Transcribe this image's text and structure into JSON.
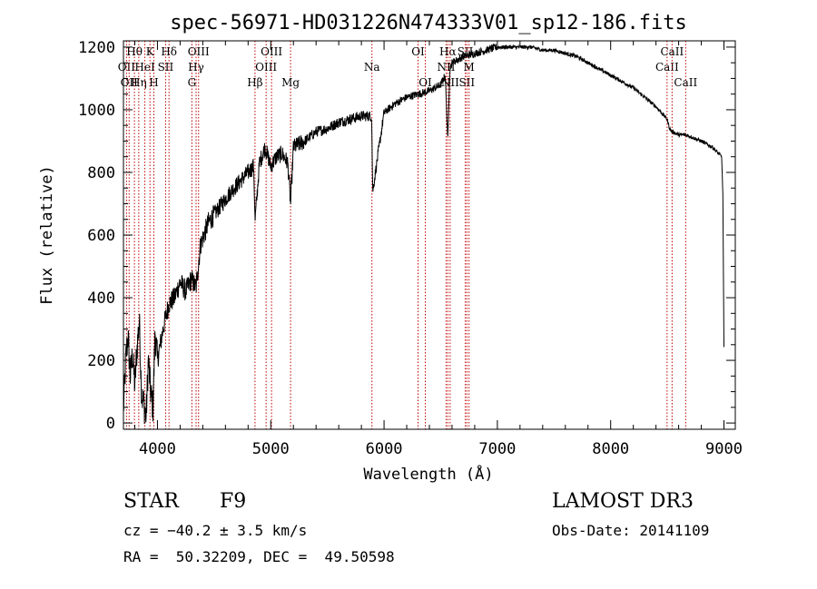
{
  "chart_data": {
    "type": "line",
    "title": "spec-56971-HD031226N474333V01_sp12-186.fits",
    "xlabel": "Wavelength (Å)",
    "ylabel": "Flux (relative)",
    "xlim": [
      3700,
      9100
    ],
    "ylim": [
      -20,
      1220
    ],
    "xticks": [
      4000,
      5000,
      6000,
      7000,
      8000,
      9000
    ],
    "yticks": [
      0,
      200,
      400,
      600,
      800,
      1000,
      1200
    ],
    "series": [
      {
        "name": "flux",
        "x": [
          3700,
          3720,
          3740,
          3760,
          3780,
          3800,
          3820,
          3840,
          3860,
          3880,
          3900,
          3920,
          3940,
          3960,
          3980,
          4000,
          4050,
          4100,
          4150,
          4200,
          4250,
          4300,
          4340,
          4380,
          4450,
          4550,
          4650,
          4750,
          4850,
          4861,
          4900,
          4950,
          5000,
          5050,
          5100,
          5150,
          5175,
          5200,
          5300,
          5400,
          5500,
          5600,
          5700,
          5800,
          5890,
          5900,
          6000,
          6100,
          6200,
          6300,
          6400,
          6500,
          6540,
          6563,
          6580,
          6600,
          6700,
          6800,
          6900,
          7000,
          7100,
          7200,
          7300,
          7400,
          7500,
          7600,
          7700,
          7800,
          7900,
          8000,
          8100,
          8200,
          8300,
          8400,
          8498,
          8520,
          8542,
          8600,
          8662,
          8700,
          8800,
          8900,
          8980,
          8990,
          9000
        ],
        "y": [
          40,
          200,
          280,
          150,
          220,
          120,
          240,
          330,
          90,
          60,
          20,
          200,
          100,
          50,
          290,
          200,
          300,
          380,
          400,
          450,
          420,
          460,
          430,
          570,
          640,
          690,
          740,
          780,
          820,
          640,
          830,
          880,
          820,
          850,
          860,
          830,
          700,
          880,
          900,
          930,
          940,
          960,
          970,
          980,
          980,
          740,
          990,
          1020,
          1040,
          1050,
          1060,
          1080,
          1110,
          900,
          1130,
          1150,
          1170,
          1180,
          1190,
          1200,
          1200,
          1200,
          1200,
          1190,
          1190,
          1180,
          1170,
          1150,
          1130,
          1110,
          1090,
          1070,
          1040,
          1010,
          970,
          940,
          930,
          920,
          920,
          915,
          900,
          880,
          850,
          730,
          240
        ]
      }
    ],
    "lines": [
      {
        "wl": 3727,
        "label": "OII",
        "row": 2
      },
      {
        "wl": 3750,
        "label": "OII",
        "row": 3
      },
      {
        "wl": 3797,
        "label": "Hθ",
        "row": 1
      },
      {
        "wl": 3835,
        "label": "Hη",
        "row": 3
      },
      {
        "wl": 3889,
        "label": "HeI",
        "row": 2
      },
      {
        "wl": 3934,
        "label": "K",
        "row": 1
      },
      {
        "wl": 3968,
        "label": "H",
        "row": 3
      },
      {
        "wl": 4072,
        "label": "SII",
        "row": 2
      },
      {
        "wl": 4102,
        "label": "Hδ",
        "row": 1
      },
      {
        "wl": 4304,
        "label": "G",
        "row": 3
      },
      {
        "wl": 4341,
        "label": "Hγ",
        "row": 2
      },
      {
        "wl": 4363,
        "label": "OIII",
        "row": 1
      },
      {
        "wl": 4861,
        "label": "Hβ",
        "row": 3
      },
      {
        "wl": 4959,
        "label": "OIII",
        "row": 2
      },
      {
        "wl": 5007,
        "label": "OIII",
        "row": 1
      },
      {
        "wl": 5175,
        "label": "Mg",
        "row": 3
      },
      {
        "wl": 5893,
        "label": "Na",
        "row": 2
      },
      {
        "wl": 6300,
        "label": "OI",
        "row": 1
      },
      {
        "wl": 6364,
        "label": "OI",
        "row": 3
      },
      {
        "wl": 6548,
        "label": "NII",
        "row": 2
      },
      {
        "wl": 6563,
        "label": "Hα",
        "row": 1
      },
      {
        "wl": 6583,
        "label": "NII",
        "row": 3
      },
      {
        "wl": 6717,
        "label": "SII",
        "row": 1
      },
      {
        "wl": 6731,
        "label": "SII",
        "row": 3
      },
      {
        "wl": 6750,
        "label": "M",
        "row": 2
      },
      {
        "wl": 8498,
        "label": "CaII",
        "row": 2
      },
      {
        "wl": 8542,
        "label": "CaII",
        "row": 1
      },
      {
        "wl": 8662,
        "label": "CaII",
        "row": 3
      }
    ]
  },
  "info": {
    "object_class": "STAR",
    "subclass": "F9",
    "survey": "LAMOST DR3",
    "cz": "cz = −40.2 ± 3.5 km/s",
    "obs_date": "Obs-Date: 20141109",
    "coords": "RA =  50.32209, DEC =  49.50598"
  }
}
